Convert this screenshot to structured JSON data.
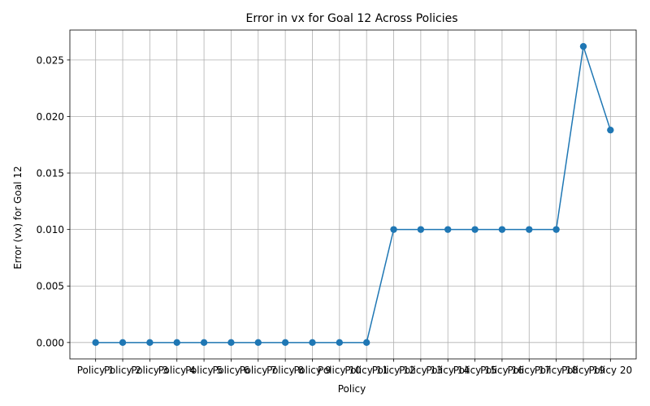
{
  "chart_data": {
    "type": "line",
    "title": "Error in vx for Goal 12 Across Policies",
    "xlabel": "Policy",
    "ylabel": "Error (vx) for Goal 12",
    "categories": [
      "Policy 1",
      "Policy 2",
      "Policy 3",
      "Policy 4",
      "Policy 5",
      "Policy 6",
      "Policy 7",
      "Policy 8",
      "Policy 9",
      "Policy 10",
      "Policy 11",
      "Policy 12",
      "Policy 13",
      "Policy 14",
      "Policy 15",
      "Policy 16",
      "Policy 17",
      "Policy 18",
      "Policy 19",
      "Policy 20"
    ],
    "series": [
      {
        "values": [
          0,
          0,
          0,
          0,
          0,
          0,
          0,
          0,
          0,
          0,
          0,
          0.01,
          0.01,
          0.01,
          0.01,
          0.01,
          0.01,
          0.01,
          0.0262,
          0.0188
        ],
        "color": "#1f77b4"
      }
    ],
    "yticks": [
      0.0,
      0.005,
      0.01,
      0.015,
      0.02,
      0.025
    ],
    "ytick_labels": [
      "0.000",
      "0.005",
      "0.010",
      "0.015",
      "0.020",
      "0.025"
    ],
    "ylim": [
      -0.00145,
      0.02765
    ],
    "grid": true,
    "marker": "circle"
  }
}
